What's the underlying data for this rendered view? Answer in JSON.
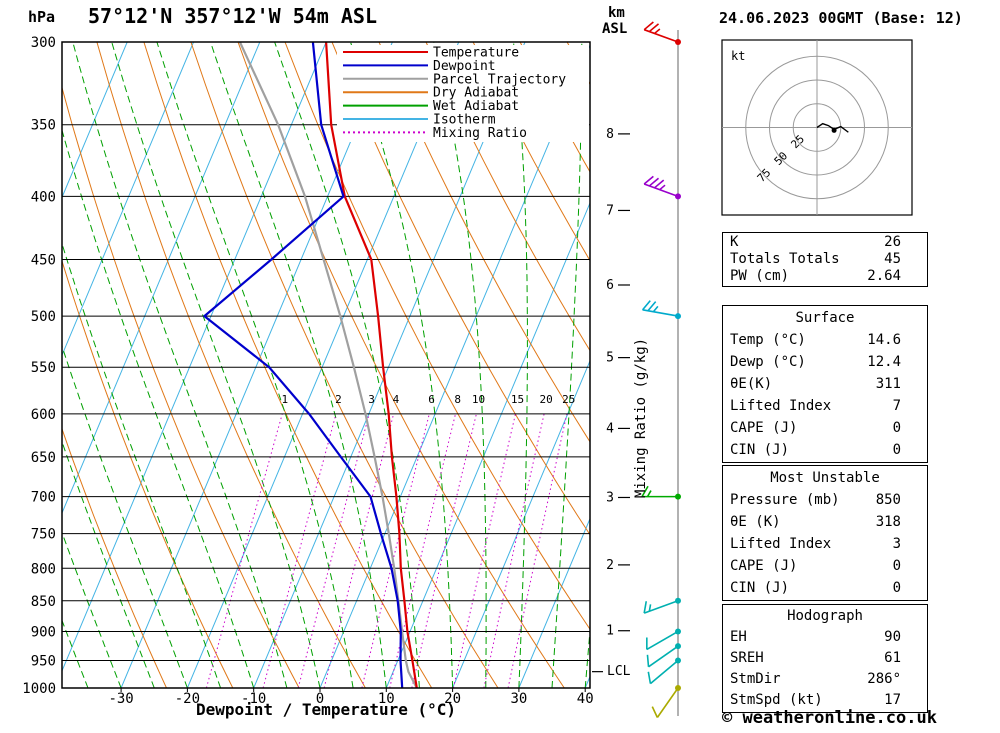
{
  "header": {
    "pressure_unit": "hPa",
    "title": "57°12'N 357°12'W 54m ASL",
    "date_title": "24.06.2023 00GMT (Base: 12)",
    "km_label": "km",
    "asl_label": "ASL"
  },
  "chart_data": {
    "type": "skewt-sounding",
    "skewt": {
      "xlabel": "Dewpoint / Temperature (°C)",
      "pressure_ticks": [
        300,
        350,
        400,
        450,
        500,
        550,
        600,
        650,
        700,
        750,
        800,
        850,
        900,
        950,
        1000
      ],
      "temp_ticks": [
        -30,
        -20,
        -10,
        0,
        10,
        20,
        30,
        40
      ],
      "km_ticks": [
        1,
        2,
        3,
        4,
        5,
        6,
        7,
        8
      ],
      "lcl_label": "LCL",
      "lcl_pressure": 970,
      "mixing_ratio_label": "Mixing Ratio (g/kg)",
      "mixing_ratio_values": [
        1,
        2,
        3,
        4,
        6,
        8,
        10,
        15,
        20,
        25
      ],
      "legend": [
        {
          "label": "Temperature",
          "color": "#dd0000",
          "style": "solid"
        },
        {
          "label": "Dewpoint",
          "color": "#0000cc",
          "style": "solid"
        },
        {
          "label": "Parcel Trajectory",
          "color": "#a0a0a0",
          "style": "solid"
        },
        {
          "label": "Dry Adiabat",
          "color": "#e07818",
          "style": "solid"
        },
        {
          "label": "Wet Adiabat",
          "color": "#00a000",
          "style": "solid"
        },
        {
          "label": "Isotherm",
          "color": "#44b4e4",
          "style": "solid"
        },
        {
          "label": "Mixing Ratio",
          "color": "#cc00cc",
          "style": "dotted"
        }
      ],
      "temperature_profile": [
        [
          1000,
          14.6
        ],
        [
          950,
          12.2
        ],
        [
          900,
          9.6
        ],
        [
          850,
          7.2
        ],
        [
          800,
          4.6
        ],
        [
          750,
          2.2
        ],
        [
          700,
          -0.6
        ],
        [
          650,
          -3.8
        ],
        [
          600,
          -7.0
        ],
        [
          550,
          -10.8
        ],
        [
          500,
          -14.8
        ],
        [
          450,
          -19.4
        ],
        [
          400,
          -27.4
        ],
        [
          350,
          -34.0
        ],
        [
          300,
          -40.0
        ]
      ],
      "dewpoint_profile": [
        [
          1000,
          12.4
        ],
        [
          950,
          10.4
        ],
        [
          900,
          8.6
        ],
        [
          850,
          6.2
        ],
        [
          800,
          3.2
        ],
        [
          750,
          -0.6
        ],
        [
          700,
          -4.5
        ],
        [
          650,
          -11.5
        ],
        [
          600,
          -19.0
        ],
        [
          550,
          -28.0
        ],
        [
          500,
          -41.0
        ],
        [
          450,
          -34.5
        ],
        [
          400,
          -27.6
        ],
        [
          350,
          -35.5
        ],
        [
          300,
          -42.0
        ]
      ],
      "parcel_profile": [
        [
          1000,
          14.6
        ],
        [
          970,
          12.3
        ],
        [
          950,
          11.2
        ],
        [
          900,
          8.8
        ],
        [
          850,
          6.3
        ],
        [
          800,
          3.6
        ],
        [
          750,
          0.6
        ],
        [
          700,
          -2.7
        ],
        [
          650,
          -6.4
        ],
        [
          600,
          -10.5
        ],
        [
          550,
          -15.2
        ],
        [
          500,
          -20.5
        ],
        [
          450,
          -26.6
        ],
        [
          400,
          -33.4
        ],
        [
          350,
          -42.0
        ],
        [
          300,
          -53.0
        ]
      ]
    },
    "winds": [
      {
        "pressure": 300,
        "speed": 25,
        "direction": 290,
        "color": "#dd0000"
      },
      {
        "pressure": 400,
        "speed": 35,
        "direction": 290,
        "color": "#9900cc"
      },
      {
        "pressure": 500,
        "speed": 25,
        "direction": 280,
        "color": "#00aacc"
      },
      {
        "pressure": 700,
        "speed": 15,
        "direction": 270,
        "color": "#00aa00"
      },
      {
        "pressure": 850,
        "speed": 15,
        "direction": 250,
        "color": "#00b0b0"
      },
      {
        "pressure": 900,
        "speed": 10,
        "direction": 240,
        "color": "#00b0b0"
      },
      {
        "pressure": 925,
        "speed": 10,
        "direction": 235,
        "color": "#00b0b0"
      },
      {
        "pressure": 950,
        "speed": 10,
        "direction": 230,
        "color": "#00b0b0"
      },
      {
        "pressure": 1000,
        "speed": 10,
        "direction": 215,
        "color": "#aaaa00"
      }
    ],
    "hodograph": {
      "unit_label": "kt",
      "rings": [
        25,
        50,
        75
      ],
      "trace": [
        [
          0,
          0
        ],
        [
          6,
          4
        ],
        [
          12,
          2
        ],
        [
          18,
          -2
        ],
        [
          25,
          1
        ],
        [
          33,
          -5
        ]
      ],
      "marker": [
        18,
        -3
      ]
    },
    "tables": [
      {
        "rows": [
          {
            "label": "K",
            "value": "26"
          },
          {
            "label": "Totals Totals",
            "value": "45"
          },
          {
            "label": "PW (cm)",
            "value": "2.64"
          }
        ]
      },
      {
        "header": "Surface",
        "rows": [
          {
            "label": "Temp (°C)",
            "value": "14.6"
          },
          {
            "label": "Dewp (°C)",
            "value": "12.4"
          },
          {
            "label": "θE(K)",
            "value": "311"
          },
          {
            "label": "Lifted Index",
            "value": "7"
          },
          {
            "label": "CAPE (J)",
            "value": "0"
          },
          {
            "label": "CIN (J)",
            "value": "0"
          }
        ]
      },
      {
        "header": "Most Unstable",
        "rows": [
          {
            "label": "Pressure (mb)",
            "value": "850"
          },
          {
            "label": "θE (K)",
            "value": "318"
          },
          {
            "label": "Lifted Index",
            "value": "3"
          },
          {
            "label": "CAPE (J)",
            "value": "0"
          },
          {
            "label": "CIN (J)",
            "value": "0"
          }
        ]
      },
      {
        "header": "Hodograph",
        "rows": [
          {
            "label": "EH",
            "value": "90"
          },
          {
            "label": "SREH",
            "value": "61"
          },
          {
            "label": "StmDir",
            "value": "286°"
          },
          {
            "label": "StmSpd (kt)",
            "value": "17"
          }
        ]
      }
    ]
  },
  "footer": {
    "copyright": "© weatheronline.co.uk"
  }
}
